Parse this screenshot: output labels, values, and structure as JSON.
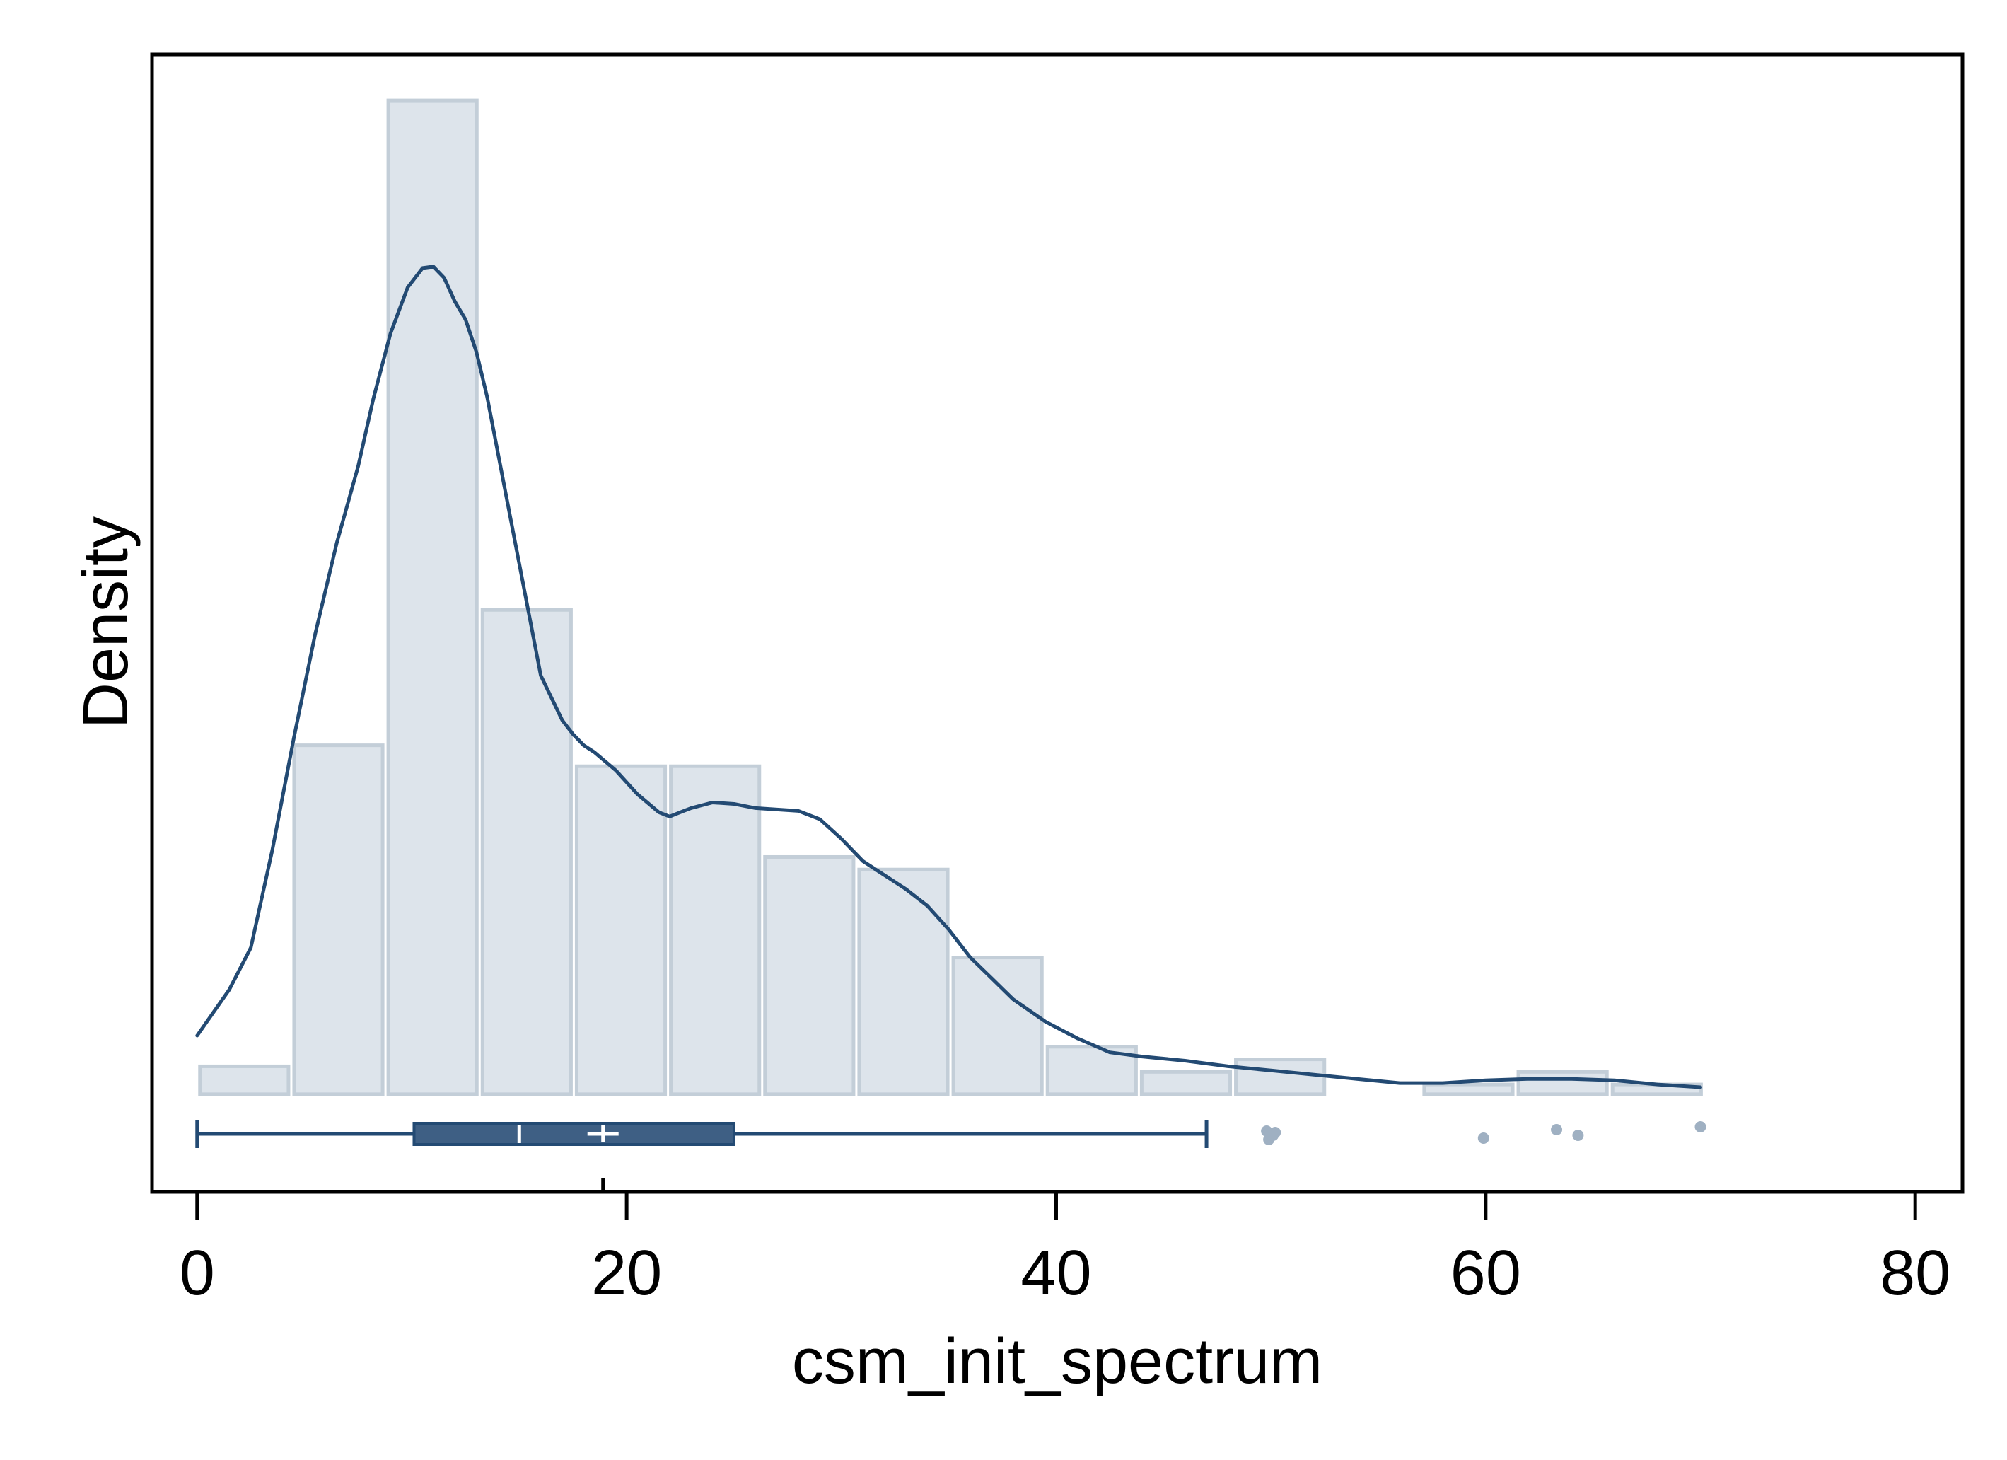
{
  "chart_data": {
    "type": "histogram",
    "title": "",
    "xlabel": "csm_init_spectrum",
    "ylabel": "Density",
    "xlim": [
      -2.1,
      82.2
    ],
    "x_ticks": [
      0,
      20,
      40,
      60,
      80
    ],
    "x_tick_labels": [
      "0",
      "20",
      "40",
      "60",
      "80"
    ],
    "y_ticks_shown": false,
    "colors": {
      "bar_fill": "#dde4eb",
      "bar_stroke": "#c3ced8",
      "line": "#234a73",
      "box_fill": "#3e5f84",
      "outlier": "#9fb0c2",
      "frame": "#000000"
    },
    "histogram": {
      "bin_edges": [
        0,
        4.385,
        8.77,
        13.155,
        17.54,
        21.925,
        26.31,
        30.695,
        35.08,
        39.465,
        43.85,
        48.235,
        52.62,
        57.005,
        61.39,
        65.775,
        70.16
      ],
      "densities": [
        0.002,
        0.025,
        0.0712,
        0.0347,
        0.0235,
        0.0235,
        0.017,
        0.0161,
        0.0098,
        0.0034,
        0.0016,
        0.0025,
        0.0,
        0.0007,
        0.0016,
        0.0007
      ],
      "ylim": [
        -0.007,
        0.0745
      ]
    },
    "density_curve": {
      "x": [
        0,
        1.5,
        2.5,
        3.5,
        4.5,
        5.5,
        6.5,
        7.5,
        8.2,
        9.0,
        9.8,
        10.5,
        11.0,
        11.5,
        12.0,
        12.5,
        13.0,
        13.5,
        14.0,
        15.0,
        16.0,
        17.0,
        17.5,
        18.0,
        18.5,
        19.5,
        20.5,
        21.5,
        22.0,
        22.5,
        23.0,
        24.0,
        25.0,
        26.0,
        27.0,
        28.0,
        29.0,
        30.0,
        31.0,
        32.0,
        33.0,
        34.0,
        35.0,
        36.0,
        37.0,
        38.0,
        39.5,
        41.0,
        42.5,
        44.0,
        46.0,
        48.0,
        50.0,
        52.0,
        54.0,
        56.0,
        58.0,
        60.0,
        62.0,
        64.0,
        66.0,
        68.0,
        70.0
      ],
      "y": [
        0.0042,
        0.0075,
        0.0105,
        0.0175,
        0.0255,
        0.033,
        0.0395,
        0.045,
        0.0498,
        0.0545,
        0.0578,
        0.0592,
        0.0593,
        0.0585,
        0.0568,
        0.0555,
        0.0532,
        0.05,
        0.046,
        0.038,
        0.03,
        0.0268,
        0.0258,
        0.025,
        0.0245,
        0.0232,
        0.0215,
        0.0202,
        0.0199,
        0.0202,
        0.0205,
        0.0209,
        0.0208,
        0.0205,
        0.0204,
        0.0203,
        0.0197,
        0.0183,
        0.0167,
        0.0157,
        0.0147,
        0.0135,
        0.0118,
        0.0098,
        0.0083,
        0.0068,
        0.0052,
        0.004,
        0.003,
        0.0027,
        0.0024,
        0.002,
        0.0017,
        0.0014,
        0.0011,
        0.0008,
        0.0008,
        0.001,
        0.0011,
        0.0011,
        0.001,
        0.0007,
        0.0005
      ]
    },
    "boxplot": {
      "whisker_low": 0,
      "q1": 10.1,
      "median": 15.0,
      "mean": 18.9,
      "q3": 25.0,
      "whisker_high": 47.0,
      "outliers": [
        49.8,
        50.1,
        49.9,
        50.2,
        59.9,
        63.3,
        64.3,
        70.0
      ]
    }
  }
}
